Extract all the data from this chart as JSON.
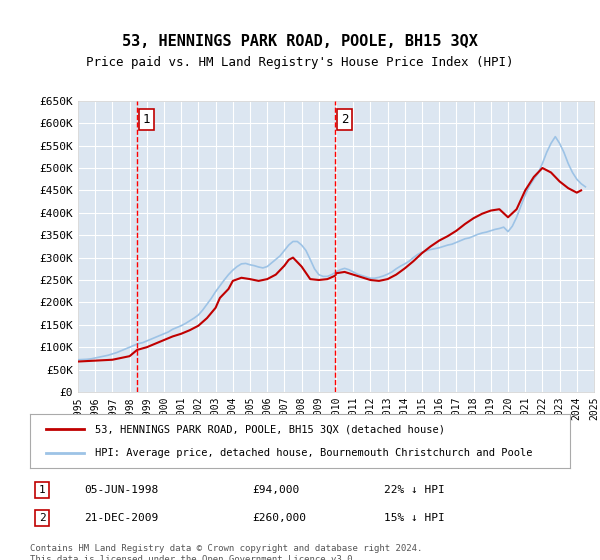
{
  "title": "53, HENNINGS PARK ROAD, POOLE, BH15 3QX",
  "subtitle": "Price paid vs. HM Land Registry's House Price Index (HPI)",
  "ylabel": "",
  "xlabel": "",
  "ylim": [
    0,
    650000
  ],
  "yticks": [
    0,
    50000,
    100000,
    150000,
    200000,
    250000,
    300000,
    350000,
    400000,
    450000,
    500000,
    550000,
    600000,
    650000
  ],
  "ytick_labels": [
    "£0",
    "£50K",
    "£100K",
    "£150K",
    "£200K",
    "£250K",
    "£300K",
    "£350K",
    "£400K",
    "£450K",
    "£500K",
    "£550K",
    "£600K",
    "£650K"
  ],
  "background_color": "#dce6f1",
  "plot_bg_color": "#dce6f1",
  "grid_color": "#ffffff",
  "red_line_color": "#c00000",
  "blue_line_color": "#9dc3e6",
  "marker_line_color": "#ff0000",
  "purchase1_year": 1998.44,
  "purchase1_price": 94000,
  "purchase1_label": "1",
  "purchase1_date": "05-JUN-1998",
  "purchase1_amount": "£94,000",
  "purchase1_hpi": "22% ↓ HPI",
  "purchase2_year": 2009.97,
  "purchase2_price": 260000,
  "purchase2_label": "2",
  "purchase2_date": "21-DEC-2009",
  "purchase2_amount": "£260,000",
  "purchase2_hpi": "15% ↓ HPI",
  "legend_line1": "53, HENNINGS PARK ROAD, POOLE, BH15 3QX (detached house)",
  "legend_line2": "HPI: Average price, detached house, Bournemouth Christchurch and Poole",
  "footnote": "Contains HM Land Registry data © Crown copyright and database right 2024.\nThis data is licensed under the Open Government Licence v3.0.",
  "hpi_years": [
    1995,
    1995.25,
    1995.5,
    1995.75,
    1996,
    1996.25,
    1996.5,
    1996.75,
    1997,
    1997.25,
    1997.5,
    1997.75,
    1998,
    1998.25,
    1998.5,
    1998.75,
    1999,
    1999.25,
    1999.5,
    1999.75,
    2000,
    2000.25,
    2000.5,
    2000.75,
    2001,
    2001.25,
    2001.5,
    2001.75,
    2002,
    2002.25,
    2002.5,
    2002.75,
    2003,
    2003.25,
    2003.5,
    2003.75,
    2004,
    2004.25,
    2004.5,
    2004.75,
    2005,
    2005.25,
    2005.5,
    2005.75,
    2006,
    2006.25,
    2006.5,
    2006.75,
    2007,
    2007.25,
    2007.5,
    2007.75,
    2008,
    2008.25,
    2008.5,
    2008.75,
    2009,
    2009.25,
    2009.5,
    2009.75,
    2010,
    2010.25,
    2010.5,
    2010.75,
    2011,
    2011.25,
    2011.5,
    2011.75,
    2012,
    2012.25,
    2012.5,
    2012.75,
    2013,
    2013.25,
    2013.5,
    2013.75,
    2014,
    2014.25,
    2014.5,
    2014.75,
    2015,
    2015.25,
    2015.5,
    2015.75,
    2016,
    2016.25,
    2016.5,
    2016.75,
    2017,
    2017.25,
    2017.5,
    2017.75,
    2018,
    2018.25,
    2018.5,
    2018.75,
    2019,
    2019.25,
    2019.5,
    2019.75,
    2020,
    2020.25,
    2020.5,
    2020.75,
    2021,
    2021.25,
    2021.5,
    2021.75,
    2022,
    2022.25,
    2022.5,
    2022.75,
    2023,
    2023.25,
    2023.5,
    2023.75,
    2024,
    2024.25,
    2024.5
  ],
  "hpi_values": [
    72000,
    72500,
    73000,
    74000,
    76000,
    78000,
    80000,
    82000,
    85000,
    88000,
    92000,
    96000,
    100000,
    104000,
    108000,
    110000,
    114000,
    118000,
    122000,
    126000,
    130000,
    134000,
    140000,
    144000,
    148000,
    153000,
    159000,
    165000,
    172000,
    183000,
    196000,
    209000,
    224000,
    237000,
    250000,
    262000,
    272000,
    280000,
    286000,
    287000,
    284000,
    282000,
    279000,
    277000,
    280000,
    288000,
    296000,
    304000,
    316000,
    328000,
    336000,
    336000,
    328000,
    316000,
    296000,
    275000,
    262000,
    258000,
    258000,
    262000,
    268000,
    273000,
    276000,
    273000,
    268000,
    263000,
    260000,
    257000,
    254000,
    254000,
    256000,
    259000,
    263000,
    268000,
    275000,
    281000,
    286000,
    292000,
    300000,
    307000,
    312000,
    315000,
    318000,
    320000,
    322000,
    325000,
    328000,
    330000,
    334000,
    338000,
    342000,
    344000,
    348000,
    352000,
    355000,
    357000,
    360000,
    363000,
    365000,
    368000,
    358000,
    370000,
    390000,
    415000,
    440000,
    460000,
    475000,
    488000,
    510000,
    535000,
    555000,
    570000,
    555000,
    535000,
    510000,
    490000,
    475000,
    465000,
    458000
  ],
  "price_years": [
    1995,
    1996,
    1997,
    1997.5,
    1998,
    1998.44,
    1999,
    1999.5,
    2000,
    2000.5,
    2001,
    2001.5,
    2002,
    2002.5,
    2003,
    2003.25,
    2003.75,
    2004,
    2004.5,
    2005,
    2005.5,
    2006,
    2006.5,
    2007,
    2007.25,
    2007.5,
    2008,
    2008.5,
    2009,
    2009.5,
    2009.97,
    2010,
    2010.5,
    2011,
    2011.5,
    2012,
    2012.5,
    2013,
    2013.5,
    2014,
    2014.5,
    2015,
    2015.5,
    2016,
    2016.5,
    2017,
    2017.5,
    2018,
    2018.5,
    2019,
    2019.5,
    2020,
    2020.5,
    2021,
    2021.5,
    2022,
    2022.5,
    2023,
    2023.5,
    2024,
    2024.25
  ],
  "price_values": [
    68000,
    70000,
    72000,
    76000,
    80000,
    94000,
    100000,
    108000,
    116000,
    124000,
    130000,
    138000,
    148000,
    165000,
    188000,
    210000,
    230000,
    248000,
    255000,
    252000,
    248000,
    252000,
    262000,
    282000,
    295000,
    300000,
    280000,
    252000,
    250000,
    252000,
    260000,
    265000,
    268000,
    262000,
    256000,
    250000,
    248000,
    252000,
    262000,
    276000,
    292000,
    310000,
    325000,
    338000,
    348000,
    360000,
    375000,
    388000,
    398000,
    405000,
    408000,
    390000,
    408000,
    450000,
    480000,
    500000,
    490000,
    470000,
    455000,
    445000,
    450000
  ]
}
